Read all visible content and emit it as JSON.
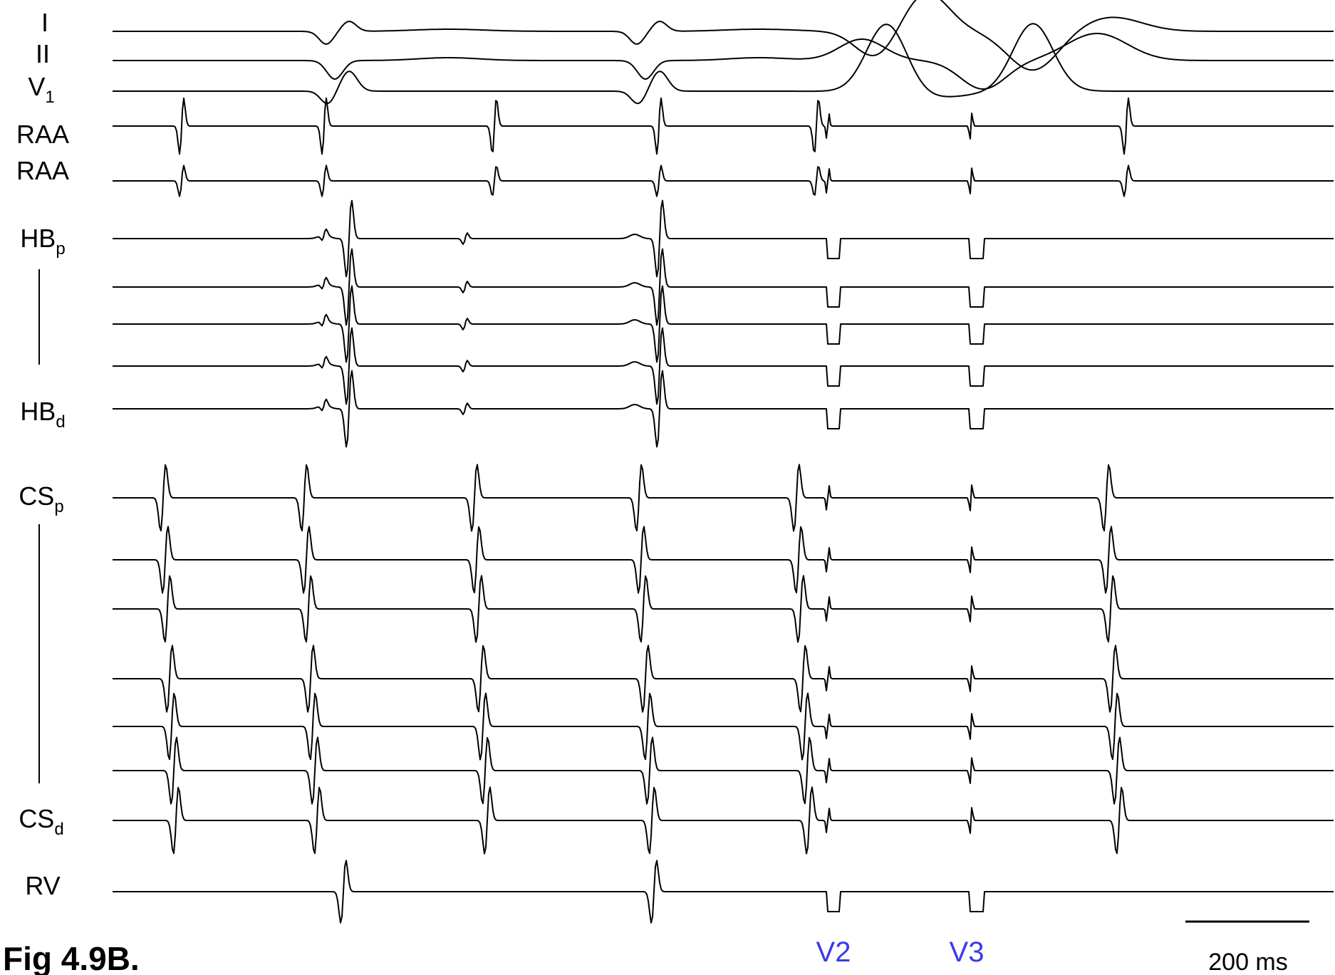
{
  "figure_caption": "Fig 4.9B.",
  "stim_color": "#3a3ae8",
  "chart_data": {
    "type": "line",
    "title": "",
    "channels": [
      {
        "label": "I",
        "sub": ""
      },
      {
        "label": "II",
        "sub": ""
      },
      {
        "label": "V",
        "sub": "1"
      },
      {
        "label": "RAA",
        "sub": ""
      },
      {
        "label": "RAA",
        "sub": ""
      },
      {
        "label": "HB",
        "sub": "p"
      },
      {
        "label": "",
        "sub": ""
      },
      {
        "label": "",
        "sub": ""
      },
      {
        "label": "",
        "sub": ""
      },
      {
        "label": "HB",
        "sub": "d"
      },
      {
        "label": "CS",
        "sub": "p"
      },
      {
        "label": "",
        "sub": ""
      },
      {
        "label": "",
        "sub": ""
      },
      {
        "label": "",
        "sub": ""
      },
      {
        "label": "",
        "sub": ""
      },
      {
        "label": "",
        "sub": ""
      },
      {
        "label": "CS",
        "sub": "d"
      },
      {
        "label": "RV",
        "sub": ""
      }
    ],
    "stimuli": [
      {
        "label": "V2",
        "time_ms": 1162
      },
      {
        "label": "V3",
        "time_ms": 1363
      }
    ],
    "scale_bar": {
      "label": "200 ms",
      "value_ms": 200
    },
    "time_range_ms": [
      0,
      1905
    ]
  }
}
